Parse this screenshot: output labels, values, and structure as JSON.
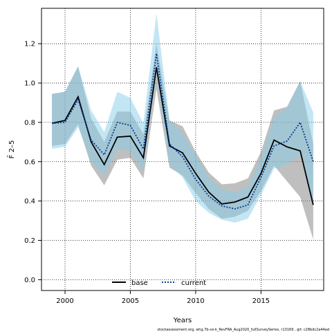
{
  "chart_data": {
    "type": "line",
    "title": "",
    "xlabel": "Years",
    "ylabel": "F̄ 2–5",
    "xlim": [
      1998.2,
      2019.8
    ],
    "ylim": [
      -0.055,
      1.38
    ],
    "x_ticks": [
      2000,
      2005,
      2010,
      2015
    ],
    "y_ticks": [
      0.0,
      0.2,
      0.4,
      0.6,
      0.8,
      1.0,
      1.2
    ],
    "grid": true,
    "legend_position": "bottom-center",
    "x": [
      1999,
      2000,
      2001,
      2002,
      2003,
      2004,
      2005,
      2006,
      2007,
      2008,
      2009,
      2010,
      2011,
      2012,
      2013,
      2014,
      2015,
      2016,
      2017,
      2018,
      2019
    ],
    "series": [
      {
        "name": "base",
        "line_style": "solid",
        "color": "#000000",
        "band_color": "#7f7f7f",
        "values": [
          0.795,
          0.81,
          0.93,
          0.7,
          0.585,
          0.725,
          0.73,
          0.62,
          1.08,
          0.68,
          0.645,
          0.54,
          0.445,
          0.385,
          0.395,
          0.42,
          0.54,
          0.71,
          0.675,
          0.655,
          0.38
        ],
        "lower": [
          0.68,
          0.69,
          0.79,
          0.58,
          0.48,
          0.61,
          0.62,
          0.515,
          0.97,
          0.57,
          0.53,
          0.44,
          0.36,
          0.31,
          0.32,
          0.35,
          0.45,
          0.58,
          0.5,
          0.42,
          0.205
        ],
        "upper": [
          0.945,
          0.955,
          1.085,
          0.82,
          0.7,
          0.855,
          0.855,
          0.74,
          1.2,
          0.81,
          0.78,
          0.65,
          0.545,
          0.485,
          0.49,
          0.515,
          0.65,
          0.86,
          0.88,
          1.01,
          0.69
        ]
      },
      {
        "name": "current",
        "line_style": "dotted",
        "color": "#003a8c",
        "band_color": "#87ceeb",
        "values": [
          0.795,
          0.8,
          0.915,
          0.71,
          0.635,
          0.8,
          0.785,
          0.665,
          1.15,
          0.69,
          0.625,
          0.51,
          0.425,
          0.375,
          0.36,
          0.38,
          0.52,
          0.68,
          0.705,
          0.8,
          0.6
        ],
        "lower": [
          0.665,
          0.675,
          0.775,
          0.6,
          0.53,
          0.665,
          0.655,
          0.555,
          1.04,
          0.585,
          0.52,
          0.4,
          0.34,
          0.305,
          0.29,
          0.31,
          0.43,
          0.565,
          0.585,
          0.635,
          0.4
        ],
        "upper": [
          0.945,
          0.955,
          1.085,
          0.86,
          0.75,
          0.955,
          0.925,
          0.795,
          1.355,
          0.81,
          0.745,
          0.635,
          0.52,
          0.46,
          0.445,
          0.47,
          0.62,
          0.825,
          0.875,
          1.01,
          0.85
        ]
      }
    ]
  },
  "footnote": "stockassessment.org,  whg.7b-ce-k_RevFRA_Aug2020_fullSurveySeries,  r13169 ,  git: c28bdc2a44ad"
}
